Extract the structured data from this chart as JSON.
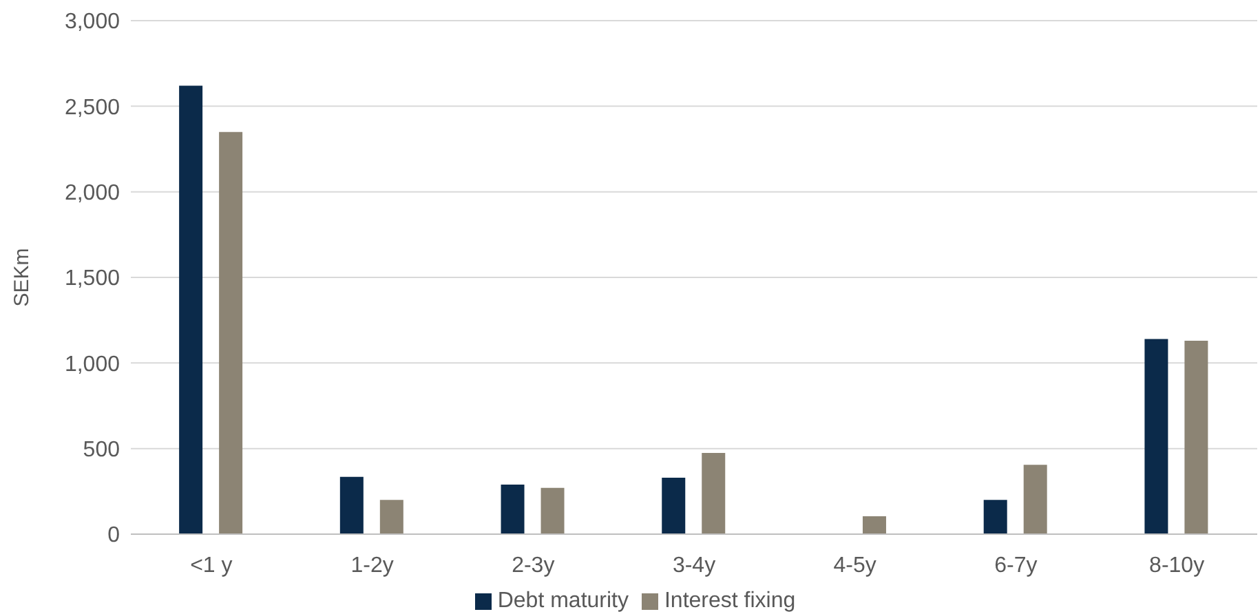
{
  "chart_data": {
    "type": "bar",
    "ylabel": "SEKm",
    "categories": [
      "<1 y",
      "1-2y",
      "2-3y",
      "3-4y",
      "4-5y",
      "6-7y",
      "8-10y"
    ],
    "series": [
      {
        "name": "Debt maturity",
        "color": "#0b2a4a",
        "values": [
          2620,
          335,
          290,
          330,
          0,
          200,
          1140
        ]
      },
      {
        "name": "Interest fixing",
        "color": "#8c8474",
        "values": [
          2350,
          200,
          270,
          475,
          105,
          405,
          1130
        ]
      }
    ],
    "ylim": [
      0,
      3000
    ],
    "yticks": [
      {
        "value": 0,
        "label": "0"
      },
      {
        "value": 500,
        "label": "500"
      },
      {
        "value": 1000,
        "label": "1,000"
      },
      {
        "value": 1500,
        "label": "1,500"
      },
      {
        "value": 2000,
        "label": "2,000"
      },
      {
        "value": 2500,
        "label": "2,500"
      },
      {
        "value": 3000,
        "label": "3,000"
      }
    ],
    "grid": "y",
    "legend": "bottom"
  }
}
